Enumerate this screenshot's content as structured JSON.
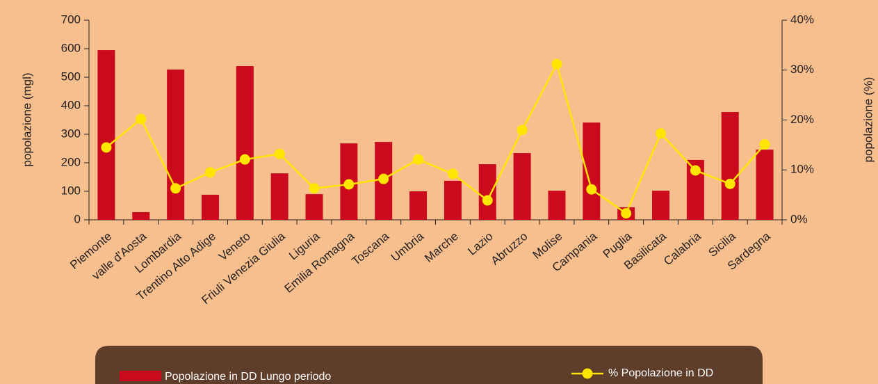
{
  "chart_data": {
    "type": "bar_line",
    "categories": [
      "Piemonte",
      "valle d'Aosta",
      "Lombardia",
      "Trentino Alto Adige",
      "Veneto",
      "Friuli Venezia Giulia",
      "Liguria",
      "Emilia Romagna",
      "Toscana",
      "Umbria",
      "Marche",
      "Lazio",
      "Abruzzo",
      "Molise",
      "Campania",
      "Puglia",
      "Basilicata",
      "Calabria",
      "Sicilia",
      "Sardegna"
    ],
    "series": [
      {
        "name": "Popolazione in DD Lungo periodo",
        "type": "bar",
        "color": "#cc0a1e",
        "values": [
          595,
          27,
          527,
          88,
          539,
          163,
          90,
          268,
          273,
          100,
          137,
          195,
          234,
          102,
          341,
          44,
          102,
          210,
          378,
          246
        ]
      },
      {
        "name": "% Popolazione in DD",
        "type": "line",
        "axis": "y2",
        "color": "#ffe600",
        "values": [
          14.5,
          20.2,
          6.3,
          9.5,
          12.1,
          13.2,
          6.3,
          7.1,
          8.2,
          12.1,
          9.2,
          3.9,
          18.0,
          31.2,
          6.1,
          1.3,
          17.3,
          9.9,
          7.2,
          15.1
        ]
      }
    ],
    "ylabel": "popolazione (mgl)",
    "y2label": "popolazione (%)",
    "ylim": [
      0,
      700
    ],
    "yticks": [
      0,
      100,
      200,
      300,
      400,
      500,
      600,
      700
    ],
    "y2lim": [
      0,
      40
    ],
    "y2ticks": [
      {
        "value": 0,
        "label": "0%"
      },
      {
        "value": 10,
        "label": "10%"
      },
      {
        "value": 20,
        "label": "20%"
      },
      {
        "value": 30,
        "label": "30%"
      },
      {
        "value": 40,
        "label": "40%"
      }
    ]
  }
}
